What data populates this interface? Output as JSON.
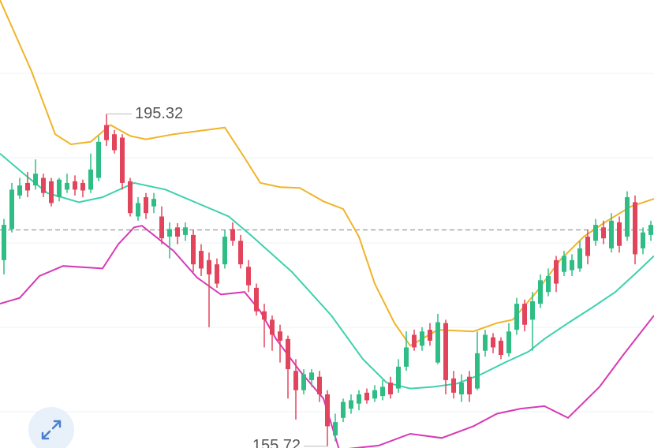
{
  "chart_data": {
    "type": "candlestick",
    "xlim": [
      -0.5,
      82.4
    ],
    "ylim": [
      155.51,
      208.9
    ],
    "up_color": "#2ebd85",
    "down_color": "#e2445c",
    "candles": {
      "open": [
        177.9,
        181.6,
        185.6,
        187.1,
        186.8,
        187.7,
        187.3,
        185.4,
        186.3,
        187.3,
        187.1,
        186.3,
        187.7,
        194.0,
        192.9,
        192.5,
        187.3,
        183.1,
        185.4,
        184.3,
        183.1,
        180.7,
        181.8,
        180.9,
        180.9,
        179.0,
        177.9,
        177.4,
        177.4,
        181.6,
        180.2,
        177.1,
        174.6,
        171.8,
        170.8,
        169.4,
        168.5,
        164.7,
        162.4,
        163.6,
        164.0,
        161.9,
        157.0,
        159.1,
        160.2,
        160.8,
        162.1,
        161.4,
        161.7,
        163.3,
        162.6,
        165.2,
        169.0,
        167.7,
        169.6,
        165.7,
        170.4,
        163.8,
        161.9,
        164.0,
        162.6,
        167.1,
        168.7,
        168.3,
        166.8,
        169.6,
        172.7,
        170.8,
        172.7,
        174.1,
        177.9,
        176.5,
        176.7,
        176.9,
        180.7,
        180.2,
        181.8,
        179.3,
        182.4,
        180.7,
        184.8,
        179.3,
        180.9
      ],
      "high": [
        182.8,
        187.1,
        187.7,
        188.4,
        189.9,
        188.2,
        187.7,
        187.7,
        188.2,
        188.0,
        187.5,
        190.6,
        192.7,
        195.32,
        193.4,
        192.9,
        187.7,
        185.4,
        185.9,
        185.9,
        184.3,
        182.4,
        182.3,
        182.4,
        181.5,
        179.8,
        178.8,
        178.1,
        181.5,
        182.4,
        180.9,
        177.9,
        175.1,
        172.7,
        171.3,
        170.2,
        168.9,
        166.1,
        164.9,
        164.9,
        164.7,
        162.4,
        159.6,
        161.4,
        161.9,
        162.4,
        162.6,
        163.0,
        163.6,
        164.0,
        166.1,
        169.4,
        169.6,
        169.9,
        170.4,
        171.5,
        170.8,
        164.7,
        164.3,
        164.7,
        169.4,
        169.6,
        169.2,
        168.7,
        170.4,
        173.4,
        173.2,
        174.1,
        176.2,
        176.9,
        178.4,
        179.0,
        178.6,
        180.2,
        181.5,
        182.8,
        182.6,
        183.5,
        183.1,
        186.1,
        185.6,
        181.8,
        182.6
      ],
      "low": [
        176.2,
        181.2,
        185.2,
        185.4,
        186.3,
        185.4,
        184.3,
        184.9,
        185.9,
        185.6,
        185.4,
        185.9,
        187.3,
        191.5,
        190.6,
        186.3,
        183.1,
        182.6,
        182.8,
        183.5,
        179.8,
        178.1,
        179.8,
        180.2,
        176.5,
        176.0,
        169.9,
        174.6,
        176.9,
        179.6,
        176.9,
        174.1,
        171.3,
        167.5,
        167.1,
        165.7,
        161.4,
        158.9,
        161.9,
        162.8,
        161.0,
        155.72,
        156.3,
        158.6,
        159.6,
        160.0,
        160.8,
        161.0,
        161.2,
        161.4,
        162.1,
        164.7,
        167.1,
        167.1,
        167.7,
        165.5,
        161.9,
        161.4,
        161.0,
        161.0,
        162.4,
        166.4,
        166.8,
        166.1,
        166.4,
        169.0,
        169.4,
        167.1,
        172.2,
        173.6,
        174.1,
        176.0,
        176.0,
        176.5,
        177.4,
        179.6,
        179.8,
        178.8,
        178.8,
        180.2,
        177.4,
        178.6,
        180.2
      ],
      "close": [
        182.1,
        186.3,
        186.8,
        186.2,
        188.2,
        185.9,
        184.7,
        187.5,
        187.1,
        186.3,
        186.2,
        188.7,
        192.0,
        192.2,
        191.0,
        187.1,
        183.5,
        184.7,
        183.5,
        185.2,
        180.5,
        181.6,
        180.7,
        181.8,
        177.4,
        176.9,
        176.2,
        175.1,
        180.7,
        180.2,
        177.4,
        174.9,
        171.8,
        170.8,
        169.0,
        168.3,
        164.9,
        162.4,
        164.3,
        164.5,
        161.9,
        158.1,
        158.6,
        161.0,
        161.2,
        161.9,
        161.2,
        162.4,
        162.8,
        161.9,
        165.2,
        167.5,
        167.5,
        169.4,
        168.3,
        170.5,
        163.6,
        162.1,
        163.3,
        161.9,
        166.8,
        169.0,
        167.5,
        166.6,
        169.4,
        172.7,
        170.2,
        173.0,
        175.5,
        176.0,
        175.1,
        178.4,
        177.9,
        179.3,
        178.4,
        182.1,
        180.5,
        182.6,
        179.6,
        185.4,
        178.6,
        181.2,
        182.1
      ]
    },
    "series": [
      {
        "color": "#f0b429",
        "x": [
          -0.5,
          3.5,
          6.5,
          8.5,
          11,
          13.5,
          16,
          18,
          21.5,
          28,
          30.5,
          32.5,
          35,
          37.5,
          40.5,
          43,
          45,
          47,
          49.5,
          51.5,
          55,
          59.5,
          62.5,
          64.5,
          67.5,
          70.5,
          73.5,
          76.5,
          79.5,
          82.4
        ],
        "values": [
          208.9,
          200.4,
          192.9,
          191.7,
          192.0,
          194.0,
          192.7,
          192.3,
          192.9,
          193.7,
          190.1,
          187.1,
          186.6,
          186.5,
          184.9,
          184.0,
          180.7,
          175.1,
          170.4,
          167.7,
          169.6,
          169.4,
          170.4,
          170.8,
          174.1,
          177.9,
          180.7,
          182.6,
          184.3,
          185.2
        ]
      },
      {
        "color": "#3dd1ad",
        "x": [
          -0.5,
          2.5,
          5.5,
          9.5,
          12.5,
          16.5,
          20.5,
          24.5,
          28.5,
          31.5,
          36.5,
          41.5,
          45.5,
          48.5,
          51.5,
          54.5,
          57.5,
          60.5,
          63.5,
          66.5,
          68.5,
          71.5,
          74.5,
          77.5,
          80.5,
          82.4
        ],
        "values": [
          190.6,
          188.2,
          185.9,
          184.8,
          185.4,
          187.1,
          186.3,
          184.7,
          183.1,
          180.7,
          176.5,
          171.3,
          166.1,
          163.3,
          162.6,
          162.8,
          163.2,
          164.3,
          165.7,
          167.0,
          168.5,
          170.4,
          172.2,
          174.1,
          176.7,
          178.4
        ]
      },
      {
        "color": "#d63ab5",
        "x": [
          -0.5,
          2,
          4.5,
          7.5,
          12.5,
          14.5,
          16.5,
          17.5,
          21.5,
          24.5,
          27.5,
          30.5,
          32.5,
          34.5,
          37.5,
          40.5,
          42.5,
          47.5,
          51.5,
          55.5,
          59.5,
          62.5,
          65.5,
          68.5,
          71.5,
          75.5,
          78.5,
          82.4
        ],
        "values": [
          172.7,
          173.4,
          176.0,
          177.2,
          176.9,
          179.8,
          181.8,
          182.0,
          179.0,
          175.8,
          173.8,
          174.1,
          171.8,
          168.5,
          164.7,
          161.4,
          155.3,
          155.8,
          157.2,
          156.7,
          158.1,
          159.6,
          160.2,
          160.5,
          159.1,
          162.8,
          166.6,
          171.3
        ]
      }
    ],
    "reference_line": 181.5,
    "annotations": [
      {
        "index": 13,
        "value": 195.32,
        "label": "195.32"
      },
      {
        "index": 41,
        "value": 155.72,
        "label": "155.72"
      }
    ]
  }
}
